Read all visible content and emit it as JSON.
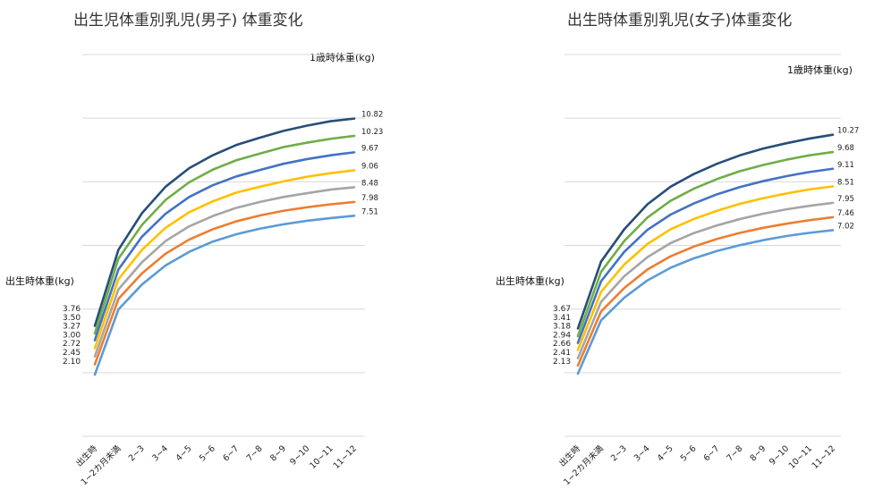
{
  "chart_data": [
    {
      "type": "line",
      "title": "出生児体重別乳児(男子) 体重変化",
      "start_axis_label": "出生時体重(kg)",
      "end_axis_label": "1歳時体重(kg)",
      "categories": [
        "出生時",
        "1~2カ月未満",
        "2~3",
        "3~4",
        "4~5",
        "5~6",
        "6~7",
        "7~8",
        "8~9",
        "9~10",
        "10~11",
        "11~12"
      ],
      "start_labels": [
        "3.76",
        "3.50",
        "3.27",
        "3.00",
        "2.72",
        "2.45",
        "2.10"
      ],
      "end_labels": [
        "10.82",
        "10.23",
        "9.67",
        "9.06",
        "8.48",
        "7.98",
        "7.51"
      ],
      "ylim": [
        0,
        13
      ],
      "grid": true,
      "colors": [
        "#264f78",
        "#70ad47",
        "#4472c4",
        "#ffc000",
        "#a5a5a5",
        "#ed7d31",
        "#5b9bd5"
      ],
      "series": [
        {
          "values": [
            3.76,
            6.35,
            7.6,
            8.5,
            9.13,
            9.57,
            9.92,
            10.17,
            10.4,
            10.58,
            10.73,
            10.82
          ]
        },
        {
          "values": [
            3.5,
            6.05,
            7.2,
            8.05,
            8.65,
            9.08,
            9.4,
            9.63,
            9.85,
            10.0,
            10.13,
            10.23
          ]
        },
        {
          "values": [
            3.27,
            5.68,
            6.8,
            7.58,
            8.15,
            8.55,
            8.85,
            9.07,
            9.28,
            9.44,
            9.57,
            9.67
          ]
        },
        {
          "values": [
            3.0,
            5.35,
            6.35,
            7.1,
            7.63,
            8.0,
            8.3,
            8.5,
            8.68,
            8.84,
            8.96,
            9.06
          ]
        },
        {
          "values": [
            2.72,
            5.0,
            5.93,
            6.65,
            7.15,
            7.5,
            7.78,
            7.98,
            8.15,
            8.28,
            8.4,
            8.48
          ]
        },
        {
          "values": [
            2.45,
            4.68,
            5.55,
            6.22,
            6.7,
            7.05,
            7.32,
            7.52,
            7.68,
            7.8,
            7.9,
            7.98
          ]
        },
        {
          "values": [
            2.1,
            4.32,
            5.17,
            5.82,
            6.28,
            6.63,
            6.88,
            7.07,
            7.22,
            7.34,
            7.43,
            7.51
          ]
        }
      ]
    },
    {
      "type": "line",
      "title": "出生時体重別乳児(女子)体重変化",
      "start_axis_label": "出生時体重(kg)",
      "end_axis_label": "1歳時体重(kg)",
      "categories": [
        "出生時",
        "1~2カ月未満",
        "2~3",
        "3~4",
        "4~5",
        "5~6",
        "6~7",
        "7~8",
        "8~9",
        "9~10",
        "10~11",
        "11~12"
      ],
      "start_labels": [
        "3.67",
        "3.41",
        "3.18",
        "2.94",
        "2.66",
        "2.41",
        "2.13"
      ],
      "end_labels": [
        "10.27",
        "9.68",
        "9.11",
        "8.51",
        "7.95",
        "7.46",
        "7.02"
      ],
      "ylim": [
        0,
        13
      ],
      "grid": true,
      "colors": [
        "#264f78",
        "#70ad47",
        "#4472c4",
        "#ffc000",
        "#a5a5a5",
        "#ed7d31",
        "#5b9bd5"
      ],
      "series": [
        {
          "values": [
            3.67,
            5.95,
            7.05,
            7.9,
            8.5,
            8.93,
            9.28,
            9.57,
            9.8,
            9.98,
            10.14,
            10.27
          ]
        },
        {
          "values": [
            3.41,
            5.6,
            6.65,
            7.45,
            8.02,
            8.43,
            8.76,
            9.03,
            9.24,
            9.42,
            9.57,
            9.68
          ]
        },
        {
          "values": [
            3.18,
            5.28,
            6.28,
            7.03,
            7.55,
            7.93,
            8.24,
            8.49,
            8.69,
            8.86,
            9.0,
            9.11
          ]
        },
        {
          "values": [
            2.94,
            4.92,
            5.85,
            6.55,
            7.05,
            7.4,
            7.68,
            7.92,
            8.11,
            8.27,
            8.41,
            8.51
          ]
        },
        {
          "values": [
            2.66,
            4.58,
            5.45,
            6.1,
            6.58,
            6.92,
            7.18,
            7.4,
            7.58,
            7.73,
            7.85,
            7.95
          ]
        },
        {
          "values": [
            2.41,
            4.25,
            5.05,
            5.68,
            6.13,
            6.46,
            6.72,
            6.93,
            7.1,
            7.24,
            7.36,
            7.46
          ]
        },
        {
          "values": [
            2.13,
            3.95,
            4.72,
            5.31,
            5.74,
            6.06,
            6.31,
            6.51,
            6.68,
            6.82,
            6.93,
            7.02
          ]
        }
      ]
    }
  ]
}
